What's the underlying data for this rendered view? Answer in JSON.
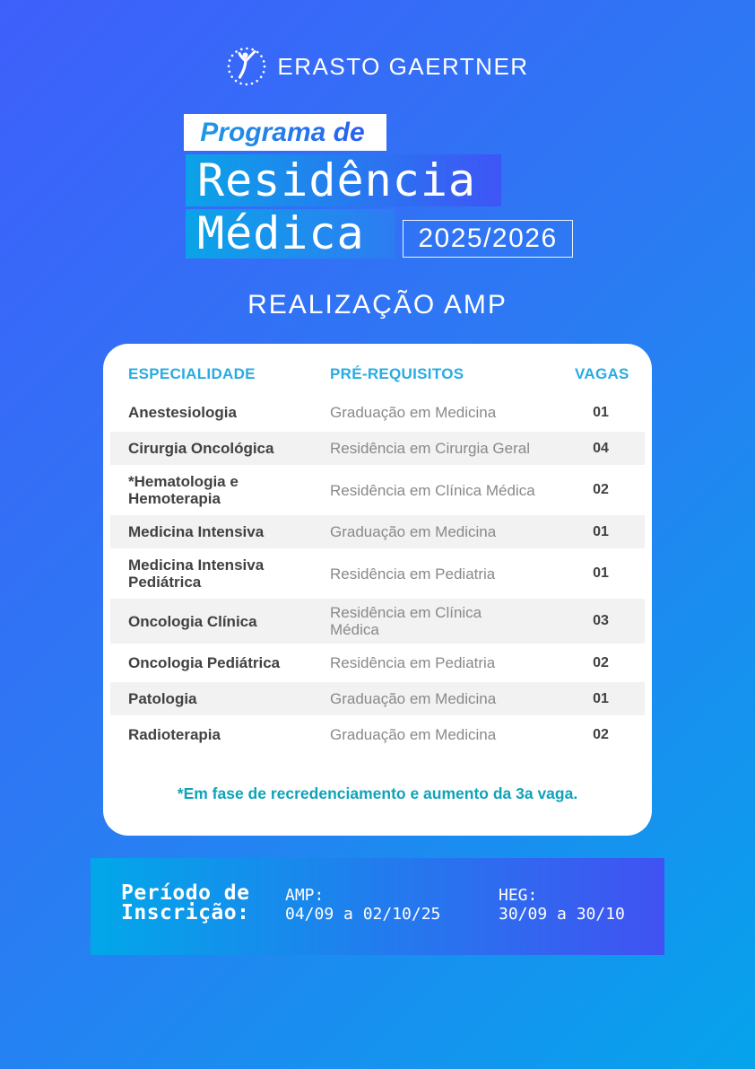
{
  "logo": {
    "text": "ERASTO GAERTNER",
    "icon": "person-in-dotted-circle"
  },
  "title": {
    "kicker": "Programa de",
    "line1": "Residência",
    "line2": "Médica",
    "period": "2025/2026"
  },
  "subtitle": "REALIZAÇÃO AMP",
  "table": {
    "headers": {
      "especialidade": "ESPECIALIDADE",
      "pre_requisitos": "PRÉ-REQUISITOS",
      "vagas": "VAGAS"
    },
    "rows": [
      {
        "especialidade": "Anestesiologia",
        "pre_requisito": "Graduação em Medicina",
        "vagas": "01",
        "striped": false
      },
      {
        "especialidade": "Cirurgia Oncológica",
        "pre_requisito": "Residência em Cirurgia Geral",
        "vagas": "04",
        "striped": true
      },
      {
        "especialidade": "*Hematologia e\nHemoterapia",
        "pre_requisito": "Residência em Clínica Médica",
        "vagas": "02",
        "striped": false
      },
      {
        "especialidade": "Medicina Intensiva",
        "pre_requisito": "Graduação em Medicina",
        "vagas": "01",
        "striped": true
      },
      {
        "especialidade": "Medicina Intensiva\nPediátrica",
        "pre_requisito": "Residência em Pediatria",
        "vagas": "01",
        "striped": false
      },
      {
        "especialidade": "Oncologia Clínica",
        "pre_requisito": "Residência em Clínica\nMédica",
        "vagas": "03",
        "striped": true
      },
      {
        "especialidade": "Oncologia Pediátrica",
        "pre_requisito": "Residência em Pediatria",
        "vagas": "02",
        "striped": false
      },
      {
        "especialidade": "Patologia",
        "pre_requisito": "Graduação em Medicina",
        "vagas": "01",
        "striped": true
      },
      {
        "especialidade": "Radioterapia",
        "pre_requisito": "Graduação em Medicina",
        "vagas": "02",
        "striped": false
      }
    ],
    "footnote": "*Em fase de recredenciamento e aumento da 3a vaga."
  },
  "banner": {
    "title_line1": "Período de",
    "title_line2": "Inscrição:",
    "amp_label": "AMP:",
    "amp_dates": "04/09 a 02/10/25",
    "heg_label": "HEG:",
    "heg_dates": "30/09 a 30/10"
  },
  "colors": {
    "background_start": "#3e5ffb",
    "background_end": "#06a3ec",
    "title_block_start": "#0ba3e8",
    "title_block_end": "#3f55f6",
    "header_cyan": "#29abe2",
    "footnote_teal": "#0fa3ba",
    "espec_text": "#414042",
    "prereq_text": "#87898b",
    "stripe": "#f2f2f3",
    "banner_start": "#02a7e9",
    "banner_end": "#4152f2"
  }
}
